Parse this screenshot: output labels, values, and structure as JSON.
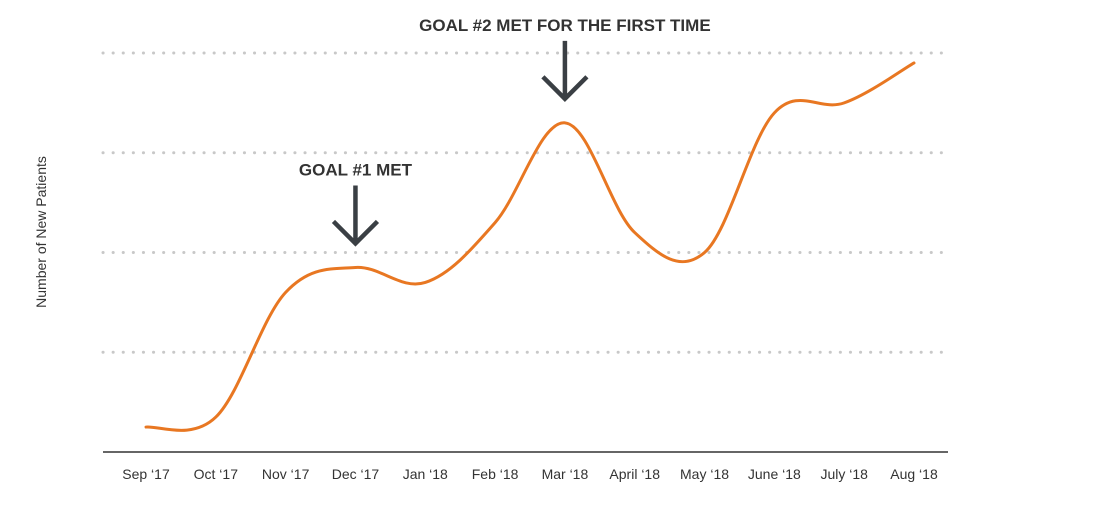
{
  "chart_data": {
    "type": "line",
    "title": "",
    "xlabel": "",
    "ylabel": "Number of New Patients",
    "categories": [
      "Sep ‘17",
      "Oct ‘17",
      "Nov ‘17",
      "Dec ‘17",
      "Jan ‘18",
      "Feb ‘18",
      "Mar ‘18",
      "April ‘18",
      "May ‘18",
      "June ‘18",
      "July ‘18",
      "Aug ‘18"
    ],
    "series": [
      {
        "values": [
          0.25,
          0.35,
          1.6,
          1.85,
          1.7,
          2.3,
          3.3,
          2.2,
          2.0,
          3.4,
          3.5,
          3.9
        ]
      }
    ],
    "ylim": [
      0,
      4
    ],
    "grid": true,
    "annotations": [
      {
        "text": "GOAL #1 MET",
        "category": "Dec ‘17"
      },
      {
        "text": "GOAL #2 MET FOR THE FIRST TIME",
        "category": "Mar ‘18"
      }
    ],
    "colors": {
      "line": "#e87722",
      "grid": "#c8c8c8",
      "arrow": "#3a3f44",
      "axis": "#333333"
    }
  }
}
